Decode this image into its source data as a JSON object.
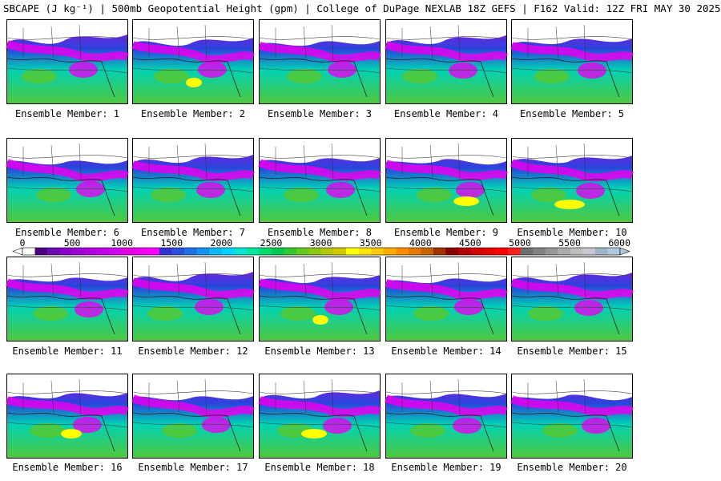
{
  "title": "SBCAPE (J kg⁻¹) | 500mb Geopotential Height (gpm) | College of DuPage NEXLAB 18Z GEFS | F162 Valid: 12Z FRI MAY 30 2025",
  "colorbar": {
    "ticks": [
      "0",
      "500",
      "1000",
      "1500",
      "2000",
      "2500",
      "3000",
      "3500",
      "4000",
      "4500",
      "5000",
      "5500",
      "6000"
    ],
    "colors": [
      "#ffffff",
      "#4b0082",
      "#6a0dad",
      "#8b00c9",
      "#a000d8",
      "#b300e0",
      "#c100e8",
      "#d000f0",
      "#e000e0",
      "#f000f0",
      "#ff00ff",
      "#3232d2",
      "#2850dc",
      "#1e6ee6",
      "#1490f0",
      "#0ab4f5",
      "#00d2ff",
      "#00e6d2",
      "#00e6a0",
      "#00dc6e",
      "#00c850",
      "#32c832",
      "#64c81e",
      "#8cc814",
      "#b4c80a",
      "#d2c800",
      "#ffff00",
      "#ffe600",
      "#ffc800",
      "#ffaa00",
      "#ff8c00",
      "#e67800",
      "#c86400",
      "#a03200",
      "#8b0000",
      "#b40000",
      "#d20000",
      "#e60000",
      "#ff0000",
      "#ff1e1e",
      "#6e6e6e",
      "#828282",
      "#969696",
      "#aaaaaa",
      "#bebebe",
      "#c8c8d2",
      "#a0b4c8",
      "#b4c8dc"
    ]
  },
  "members": [
    {
      "label": "Ensemble Member: 1",
      "hot": 0
    },
    {
      "label": "Ensemble Member: 2",
      "hot": 1
    },
    {
      "label": "Ensemble Member: 3",
      "hot": 0
    },
    {
      "label": "Ensemble Member: 4",
      "hot": 0
    },
    {
      "label": "Ensemble Member: 5",
      "hot": 0
    },
    {
      "label": "Ensemble Member: 6",
      "hot": 0
    },
    {
      "label": "Ensemble Member: 7",
      "hot": 0
    },
    {
      "label": "Ensemble Member: 8",
      "hot": 0
    },
    {
      "label": "Ensemble Member: 9",
      "hot": 1
    },
    {
      "label": "Ensemble Member: 10",
      "hot": 1
    },
    {
      "label": "Ensemble Member: 11",
      "hot": 0
    },
    {
      "label": "Ensemble Member: 12",
      "hot": 0
    },
    {
      "label": "Ensemble Member: 13",
      "hot": 1
    },
    {
      "label": "Ensemble Member: 14",
      "hot": 0
    },
    {
      "label": "Ensemble Member: 15",
      "hot": 0
    },
    {
      "label": "Ensemble Member: 16",
      "hot": 1
    },
    {
      "label": "Ensemble Member: 17",
      "hot": 0
    },
    {
      "label": "Ensemble Member: 18",
      "hot": 1
    },
    {
      "label": "Ensemble Member: 19",
      "hot": 0
    },
    {
      "label": "Ensemble Member: 20",
      "hot": 0
    }
  ]
}
